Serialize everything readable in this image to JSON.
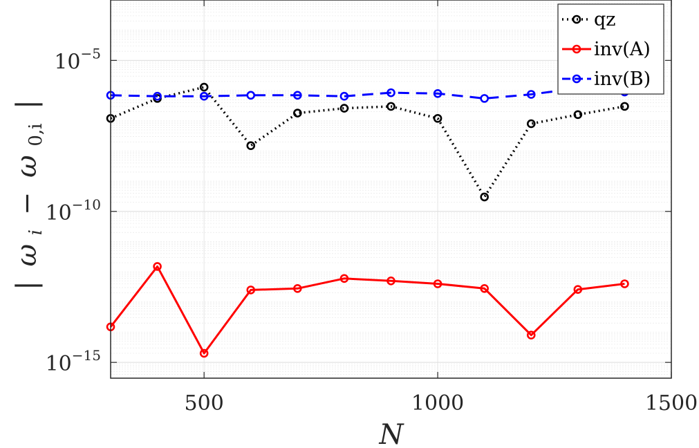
{
  "chart_data": {
    "type": "line",
    "title": "",
    "xlabel": "N",
    "ylabel": "| ω_i − ω_{0,i} |",
    "ylabel_parts": {
      "bar": "|",
      "w": "ω",
      "i": "i",
      "minus": "−",
      "zero_i": "0,i"
    },
    "xscale": "linear",
    "yscale": "log",
    "xlim": [
      300,
      1500
    ],
    "ylim": [
      3e-16,
      0.001
    ],
    "xticks": [
      500,
      1000,
      1500
    ],
    "xtick_labels": [
      "500",
      "1000",
      "1500"
    ],
    "yticks": [
      1e-15,
      1e-10,
      1e-05
    ],
    "ytick_labels": [
      {
        "base": "10",
        "exp": "−15"
      },
      {
        "base": "10",
        "exp": "−10"
      },
      {
        "base": "10",
        "exp": "−5"
      }
    ],
    "grid": true,
    "legend_position": "top-right",
    "x": [
      300,
      400,
      500,
      600,
      700,
      800,
      900,
      1000,
      1100,
      1200,
      1300,
      1400
    ],
    "series": [
      {
        "name": "qz",
        "color": "#000000",
        "line_style": "dotted",
        "values": [
          1.2e-07,
          5.5e-07,
          1.3e-06,
          1.5e-08,
          1.8e-07,
          2.6e-07,
          3e-07,
          1.2e-07,
          3e-10,
          8e-08,
          1.6e-07,
          3e-07
        ]
      },
      {
        "name": "inv(A)",
        "color": "#ff0000",
        "line_style": "solid",
        "values": [
          1.5e-14,
          1.5e-12,
          2e-15,
          2.5e-13,
          2.8e-13,
          6e-13,
          5e-13,
          4e-13,
          2.8e-13,
          8e-15,
          2.6e-13,
          4e-13
        ]
      },
      {
        "name": "inv(B)",
        "color": "#0000ff",
        "line_style": "dashed",
        "values": [
          7e-07,
          6.5e-07,
          6.5e-07,
          7e-07,
          7e-07,
          6.5e-07,
          8.5e-07,
          8e-07,
          5.5e-07,
          7.5e-07,
          1.2e-06,
          9e-07
        ]
      }
    ]
  }
}
